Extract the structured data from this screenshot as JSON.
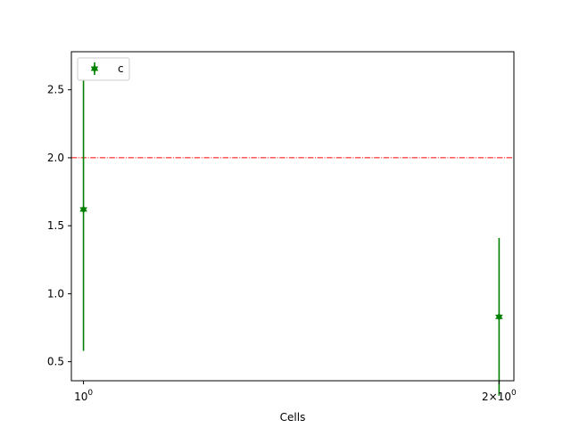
{
  "chart_data": {
    "type": "scatter",
    "xlabel": "Cells",
    "xscale": "log",
    "xlim": [
      0.98,
      2.05
    ],
    "ylim": [
      0.36,
      2.78
    ],
    "xticks": [
      {
        "value": 1,
        "base": "10",
        "exp": "0",
        "mult": ""
      },
      {
        "value": 2,
        "base": "10",
        "exp": "0",
        "mult": "2×"
      }
    ],
    "yticks": [
      {
        "value": 0.5,
        "label": "0.5"
      },
      {
        "value": 1.0,
        "label": "1.0"
      },
      {
        "value": 1.5,
        "label": "1.5"
      },
      {
        "value": 2.0,
        "label": "2.0"
      },
      {
        "value": 2.5,
        "label": "2.5"
      }
    ],
    "series": [
      {
        "name": "c",
        "color": "#008000",
        "marker": "star",
        "points": [
          {
            "x": 1,
            "y": 1.62,
            "ylow": 0.58,
            "yhigh": 2.66
          },
          {
            "x": 2,
            "y": 0.83,
            "ylow": 0.25,
            "yhigh": 1.41
          }
        ]
      }
    ],
    "reference_line": {
      "y": 2.0,
      "color": "#ff0000",
      "style": "dashdot"
    },
    "legend": {
      "placement": "top-left",
      "entries": [
        "c"
      ]
    },
    "grid": false
  }
}
